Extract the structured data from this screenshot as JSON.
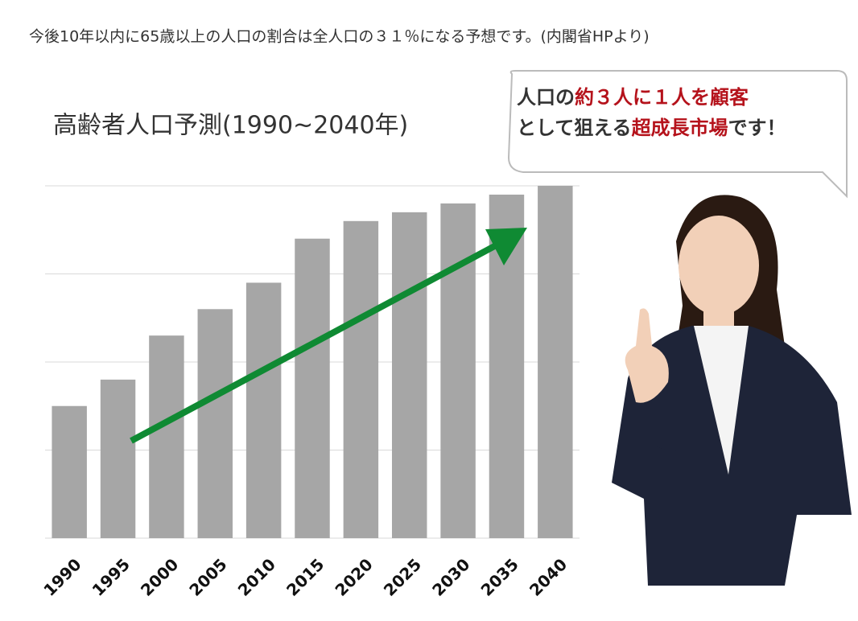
{
  "header": "今後10年以内に65歳以上の人口の割合は全人口の３１％になる予想です。(内閣省HPより)",
  "chart_data": {
    "type": "bar",
    "title": "高齢者人口予測(1990~2040年)",
    "categories": [
      "1990",
      "1995",
      "2000",
      "2005",
      "2010",
      "2015",
      "2020",
      "2025",
      "2030",
      "2035",
      "2040"
    ],
    "values": [
      1.5,
      1.8,
      2.3,
      2.6,
      2.9,
      3.4,
      3.6,
      3.7,
      3.8,
      3.9,
      4.0
    ],
    "color": "#a6a6a6",
    "ylim": [
      0,
      4
    ],
    "yticks": [
      0,
      1,
      2,
      3,
      4
    ],
    "grid": true
  },
  "callout": {
    "line1": [
      "人口の",
      "約３人に１人を顧客"
    ],
    "line2": [
      "として狙える",
      "超成長市場",
      "です！"
    ]
  }
}
